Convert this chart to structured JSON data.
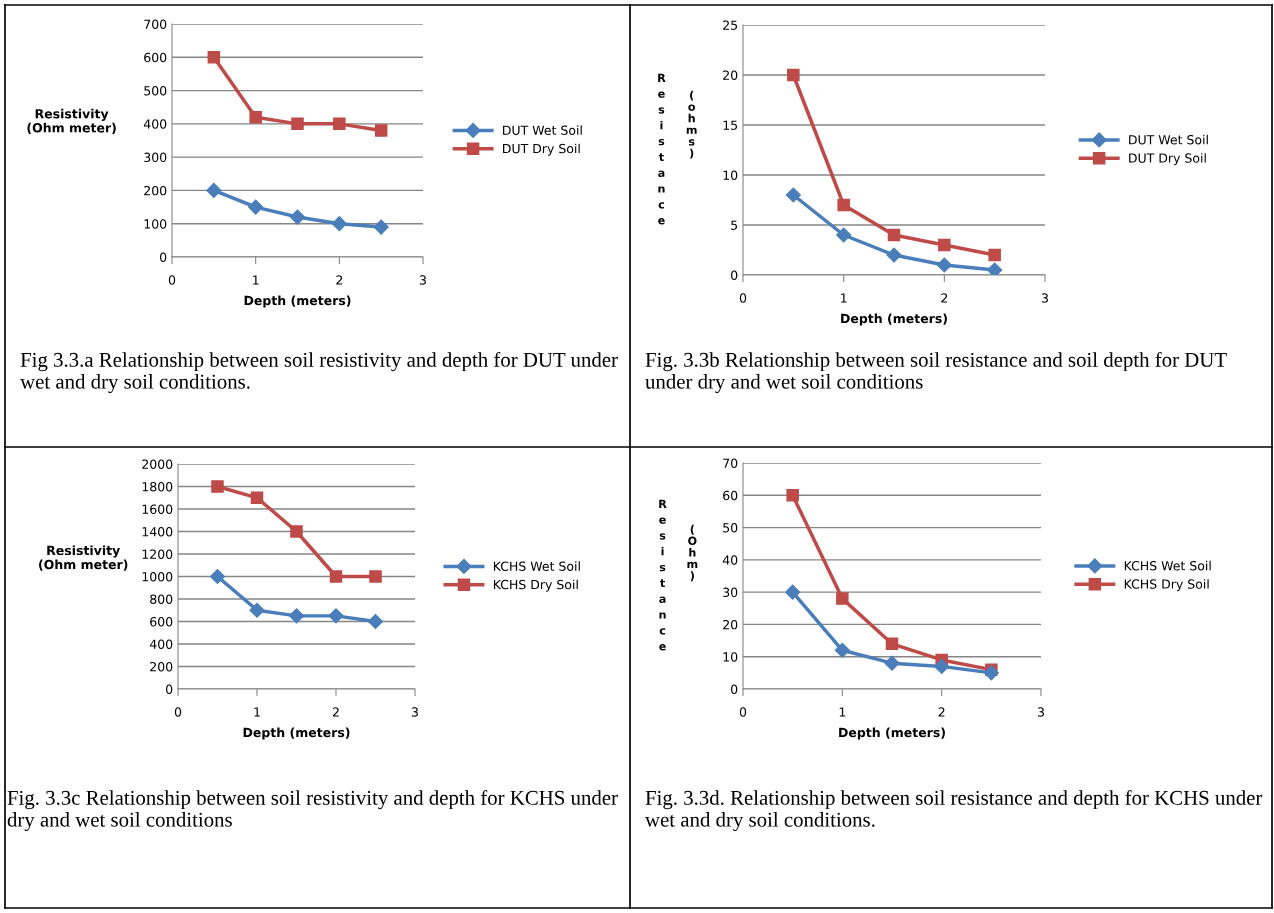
{
  "chart_data": [
    {
      "type": "line",
      "ylabel": "Resistivity\n(Ohm meter)",
      "xlabel": "Depth (meters)",
      "x": [
        0.5,
        1,
        1.5,
        2,
        2.5
      ],
      "xlim": [
        0,
        3
      ],
      "xticks": [
        0,
        1,
        2,
        3
      ],
      "ylim": [
        0,
        700
      ],
      "yticks": [
        0,
        100,
        200,
        300,
        400,
        500,
        600,
        700
      ],
      "grid": "y",
      "legend": "right",
      "annotations": [
        "Fig 3.3.a Relationship between soil resistivity and depth for DUT under wet and dry soil conditions."
      ],
      "series": [
        {
          "name": "DUT Wet Soil",
          "color": "#4a7ebb",
          "marker": "diamond",
          "values": [
            200,
            150,
            120,
            100,
            90
          ]
        },
        {
          "name": "DUT Dry Soil",
          "color": "#be4b48",
          "marker": "square",
          "values": [
            600,
            420,
            400,
            400,
            380
          ]
        }
      ]
    },
    {
      "type": "line",
      "ylabel": "Resistance (ohms)",
      "xlabel": "Depth (meters)",
      "x": [
        0.5,
        1,
        1.5,
        2,
        2.5
      ],
      "xlim": [
        0,
        3
      ],
      "xticks": [
        0,
        1,
        2,
        3
      ],
      "ylim": [
        0,
        25
      ],
      "yticks": [
        0,
        5,
        10,
        15,
        20,
        25
      ],
      "grid": "y",
      "legend": "right",
      "annotations": [
        "Fig. 3.3b Relationship between soil resistance and soil depth for DUT under dry and wet soil conditions"
      ],
      "series": [
        {
          "name": "DUT Wet Soil",
          "color": "#4a7ebb",
          "marker": "diamond",
          "values": [
            8,
            4,
            2,
            1,
            0.5
          ]
        },
        {
          "name": "DUT Dry Soil",
          "color": "#be4b48",
          "marker": "square",
          "values": [
            20,
            7,
            4,
            3,
            2
          ]
        }
      ]
    },
    {
      "type": "line",
      "ylabel": "Resistivity\n(Ohm meter)",
      "xlabel": "Depth (meters)",
      "x": [
        0.5,
        1,
        1.5,
        2,
        2.5
      ],
      "xlim": [
        0,
        3
      ],
      "xticks": [
        0,
        1,
        2,
        3
      ],
      "ylim": [
        0,
        2000
      ],
      "yticks": [
        0,
        200,
        400,
        600,
        800,
        1000,
        1200,
        1400,
        1600,
        1800,
        2000
      ],
      "grid": "y",
      "legend": "right",
      "annotations": [
        "Fig. 3.3c Relationship between soil resistivity and depth for KCHS under dry and wet soil conditions"
      ],
      "series": [
        {
          "name": "KCHS Wet Soil",
          "color": "#4a7ebb",
          "marker": "diamond",
          "values": [
            1000,
            700,
            650,
            650,
            600
          ]
        },
        {
          "name": "KCHS Dry Soil",
          "color": "#be4b48",
          "marker": "square",
          "values": [
            1800,
            1700,
            1400,
            1000,
            1000
          ]
        }
      ]
    },
    {
      "type": "line",
      "ylabel": "Resistance (Ohm)",
      "xlabel": "Depth (meters)",
      "x": [
        0.5,
        1,
        1.5,
        2,
        2.5
      ],
      "xlim": [
        0,
        3
      ],
      "xticks": [
        0,
        1,
        2,
        3
      ],
      "ylim": [
        0,
        70
      ],
      "yticks": [
        0,
        10,
        20,
        30,
        40,
        50,
        60,
        70
      ],
      "grid": "y",
      "legend": "right",
      "annotations": [
        "Fig. 3.3d. Relationship between soil resistance and depth for KCHS under wet and dry soil conditions."
      ],
      "series": [
        {
          "name": "KCHS Wet Soil",
          "color": "#4a7ebb",
          "marker": "diamond",
          "values": [
            30,
            12,
            8,
            7,
            5
          ]
        },
        {
          "name": "KCHS Dry Soil",
          "color": "#be4b48",
          "marker": "square",
          "values": [
            60,
            28,
            14,
            9,
            6
          ]
        }
      ]
    }
  ]
}
